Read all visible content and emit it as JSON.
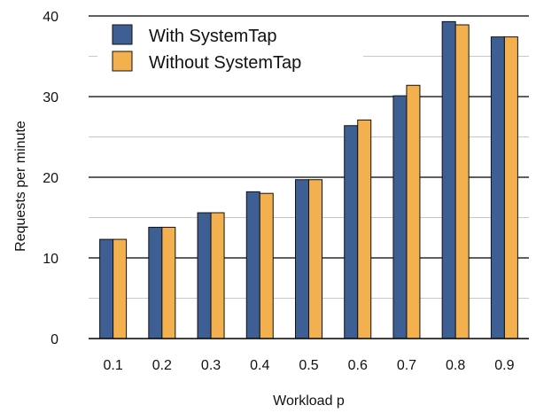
{
  "chart_data": {
    "type": "bar",
    "title": "",
    "xlabel": "Workload p",
    "ylabel": "Requests per minute",
    "categories": [
      "0.1",
      "0.2",
      "0.3",
      "0.4",
      "0.5",
      "0.6",
      "0.7",
      "0.8",
      "0.9"
    ],
    "series": [
      {
        "name": "With SystemTap",
        "color": "#3d5f94",
        "values": [
          12.3,
          13.8,
          15.6,
          18.2,
          19.7,
          26.4,
          30.1,
          39.3,
          37.4
        ]
      },
      {
        "name": "Without SystemTap",
        "color": "#f2b04e",
        "values": [
          12.3,
          13.8,
          15.6,
          18.0,
          19.7,
          27.1,
          31.4,
          38.9,
          37.4
        ]
      }
    ],
    "ylim": [
      0,
      40
    ],
    "yticks": [
      0,
      10,
      20,
      30,
      40
    ],
    "grid": true,
    "legend_position": "top-left"
  }
}
